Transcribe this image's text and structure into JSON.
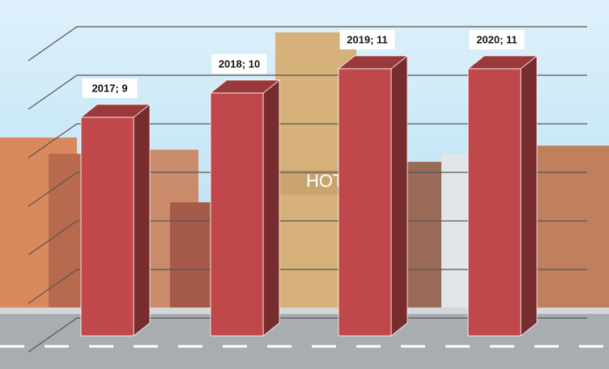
{
  "chart_data": {
    "type": "bar3d",
    "values": [
      9,
      10,
      11,
      11
    ],
    "value_labels": [
      "2017; 9",
      "2018; 10",
      "2019; 11",
      "2020; 11"
    ],
    "color": "#c0474a",
    "ylim": [
      0,
      12
    ],
    "yticks": [
      0,
      2,
      4,
      6,
      8,
      10,
      12
    ],
    "grid": true
  }
}
